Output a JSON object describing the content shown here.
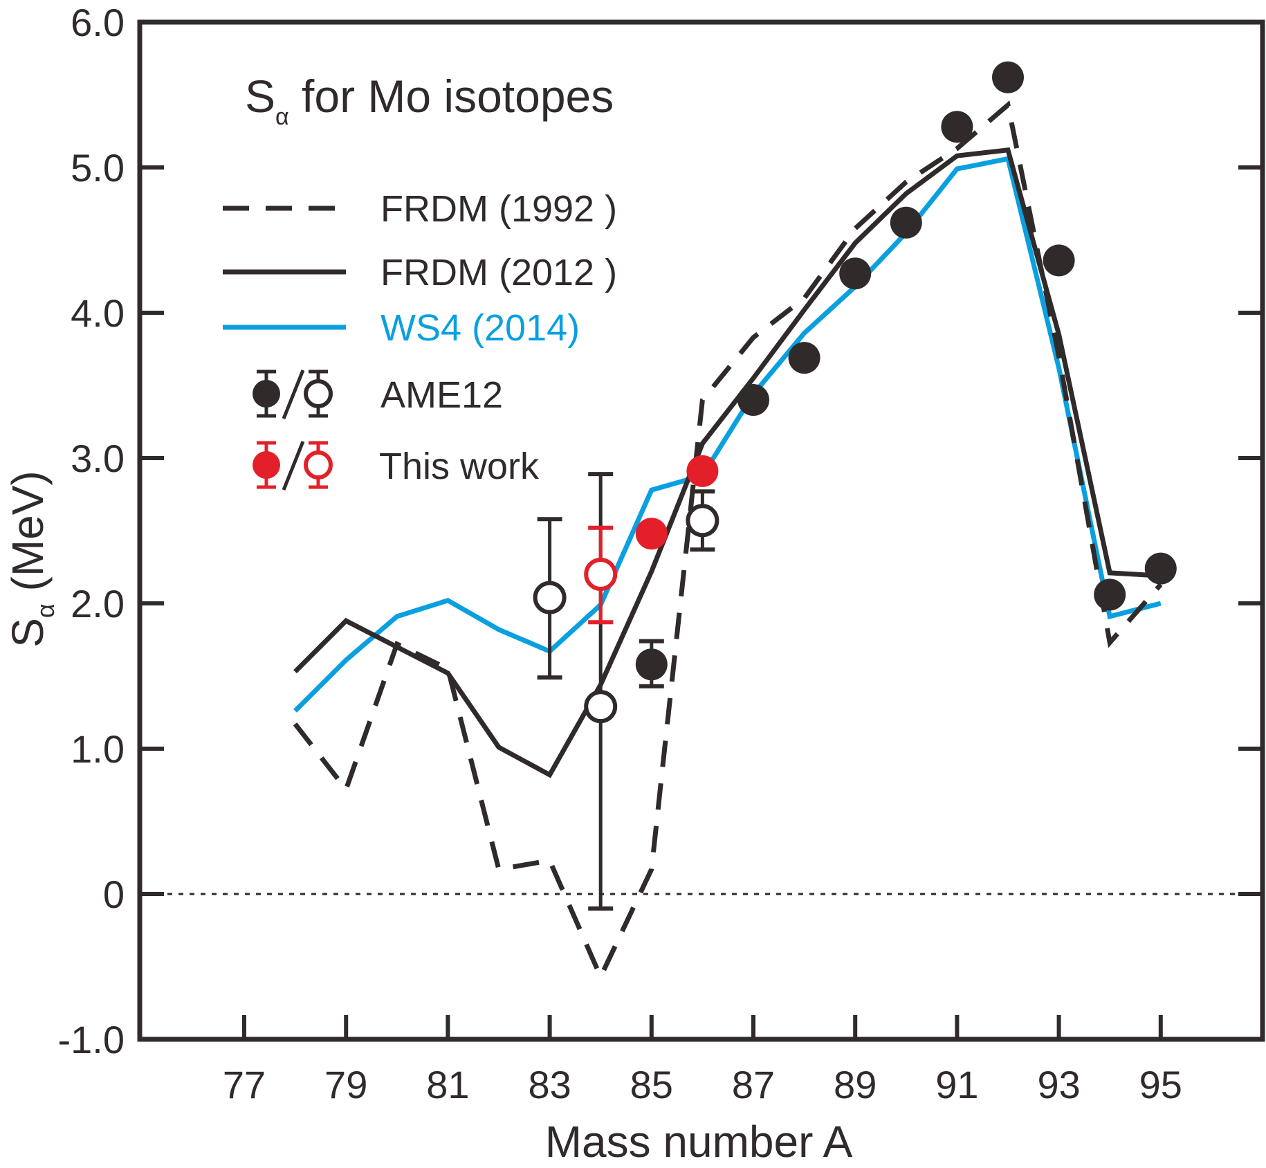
{
  "chart_data": {
    "type": "line",
    "title": "S",
    "title_subscript": "α",
    "title_rest": " for Mo isotopes",
    "xlabel": "Mass number A",
    "ylabel": "S",
    "ylabel_subscript": "α",
    "ylabel_unit": " (MeV)",
    "xlim": [
      75,
      97
    ],
    "ylim": [
      -1.0,
      6.0
    ],
    "xticks": [
      77,
      79,
      81,
      83,
      85,
      87,
      89,
      91,
      93,
      95
    ],
    "xtick_labels": [
      "77",
      "79",
      "81",
      "83",
      "85",
      "87",
      "89",
      "91",
      "93",
      "95"
    ],
    "yticks": [
      -1.0,
      0,
      1.0,
      2.0,
      3.0,
      4.0,
      5.0,
      6.0
    ],
    "ytick_labels": [
      "-1.0",
      "0",
      "1.0",
      "2.0",
      "3.0",
      "4.0",
      "5.0",
      "6.0"
    ],
    "reference_line": {
      "y": 0,
      "style": "dotted"
    },
    "colors": {
      "black": "#302a2a",
      "blue": "#0aa0e0",
      "red": "#e3202a"
    },
    "series": [
      {
        "name": "FRDM (1992 )",
        "style": "dashed",
        "color": "#302a2a",
        "x": [
          78,
          79,
          80,
          81,
          82,
          83,
          84,
          85,
          86,
          87,
          88,
          89,
          90,
          91,
          92,
          93,
          94,
          95
        ],
        "y": [
          1.17,
          0.72,
          1.72,
          1.55,
          0.17,
          0.23,
          -0.57,
          0.17,
          3.4,
          3.83,
          4.1,
          4.58,
          4.9,
          5.13,
          5.43,
          3.7,
          1.73,
          2.13
        ]
      },
      {
        "name": "FRDM (2012 )",
        "style": "solid",
        "color": "#302a2a",
        "x": [
          78,
          79,
          80,
          81,
          82,
          83,
          84,
          85,
          86,
          87,
          88,
          89,
          90,
          91,
          92,
          93,
          94,
          95
        ],
        "y": [
          1.53,
          1.88,
          1.7,
          1.52,
          1.01,
          0.82,
          1.44,
          2.22,
          3.1,
          3.55,
          4.02,
          4.48,
          4.82,
          5.08,
          5.12,
          3.85,
          2.21,
          2.19
        ]
      },
      {
        "name": "WS4 (2014)",
        "style": "solid",
        "color": "#0aa0e0",
        "x": [
          78,
          79,
          80,
          81,
          82,
          83,
          84,
          85,
          86,
          87,
          88,
          89,
          90,
          91,
          92,
          93,
          94,
          95
        ],
        "y": [
          1.26,
          1.61,
          1.91,
          2.02,
          1.82,
          1.67,
          1.99,
          2.78,
          2.88,
          3.44,
          3.86,
          4.18,
          4.55,
          4.99,
          5.06,
          3.62,
          1.91,
          2.0
        ]
      }
    ],
    "points": [
      {
        "name": "AME12",
        "color": "#302a2a",
        "filled": true,
        "x": 85,
        "y": 1.58,
        "err_low": 1.43,
        "err_high": 1.74
      },
      {
        "name": "AME12",
        "color": "#302a2a",
        "filled": true,
        "x": 87,
        "y": 3.4
      },
      {
        "name": "AME12",
        "color": "#302a2a",
        "filled": true,
        "x": 88,
        "y": 3.69
      },
      {
        "name": "AME12",
        "color": "#302a2a",
        "filled": true,
        "x": 89,
        "y": 4.27
      },
      {
        "name": "AME12",
        "color": "#302a2a",
        "filled": true,
        "x": 90,
        "y": 4.62
      },
      {
        "name": "AME12",
        "color": "#302a2a",
        "filled": true,
        "x": 91,
        "y": 5.28
      },
      {
        "name": "AME12",
        "color": "#302a2a",
        "filled": true,
        "x": 92,
        "y": 5.62
      },
      {
        "name": "AME12",
        "color": "#302a2a",
        "filled": true,
        "x": 93,
        "y": 4.36
      },
      {
        "name": "AME12",
        "color": "#302a2a",
        "filled": true,
        "x": 94,
        "y": 2.06
      },
      {
        "name": "AME12",
        "color": "#302a2a",
        "filled": true,
        "x": 95,
        "y": 2.24
      },
      {
        "name": "AME12",
        "color": "#302a2a",
        "filled": false,
        "x": 83,
        "y": 2.04,
        "err_low": 1.49,
        "err_high": 2.58
      },
      {
        "name": "AME12",
        "color": "#302a2a",
        "filled": false,
        "x": 84,
        "y": 1.29,
        "err_low": -0.1,
        "err_high": 2.89
      },
      {
        "name": "AME12",
        "color": "#302a2a",
        "filled": false,
        "x": 86,
        "y": 2.57,
        "err_low": 2.37,
        "err_high": 2.77
      },
      {
        "name": "This work",
        "color": "#e3202a",
        "filled": true,
        "x": 85,
        "y": 2.48
      },
      {
        "name": "This work",
        "color": "#e3202a",
        "filled": true,
        "x": 86,
        "y": 2.91
      },
      {
        "name": "This work",
        "color": "#e3202a",
        "filled": false,
        "x": 84,
        "y": 2.2,
        "err_low": 1.87,
        "err_high": 2.52
      }
    ],
    "legend": {
      "placement": "top-left",
      "entries": [
        {
          "label": "FRDM (1992 )",
          "kind": "dashed-line",
          "color": "#302a2a"
        },
        {
          "label": "FRDM (2012 )",
          "kind": "solid-line",
          "color": "#302a2a"
        },
        {
          "label": "WS4 (2014)",
          "kind": "solid-line",
          "color": "#0aa0e0"
        },
        {
          "label": "AME12",
          "kind": "markers",
          "color": "#302a2a"
        },
        {
          "label": "This work",
          "kind": "markers",
          "color": "#e3202a"
        }
      ]
    }
  }
}
